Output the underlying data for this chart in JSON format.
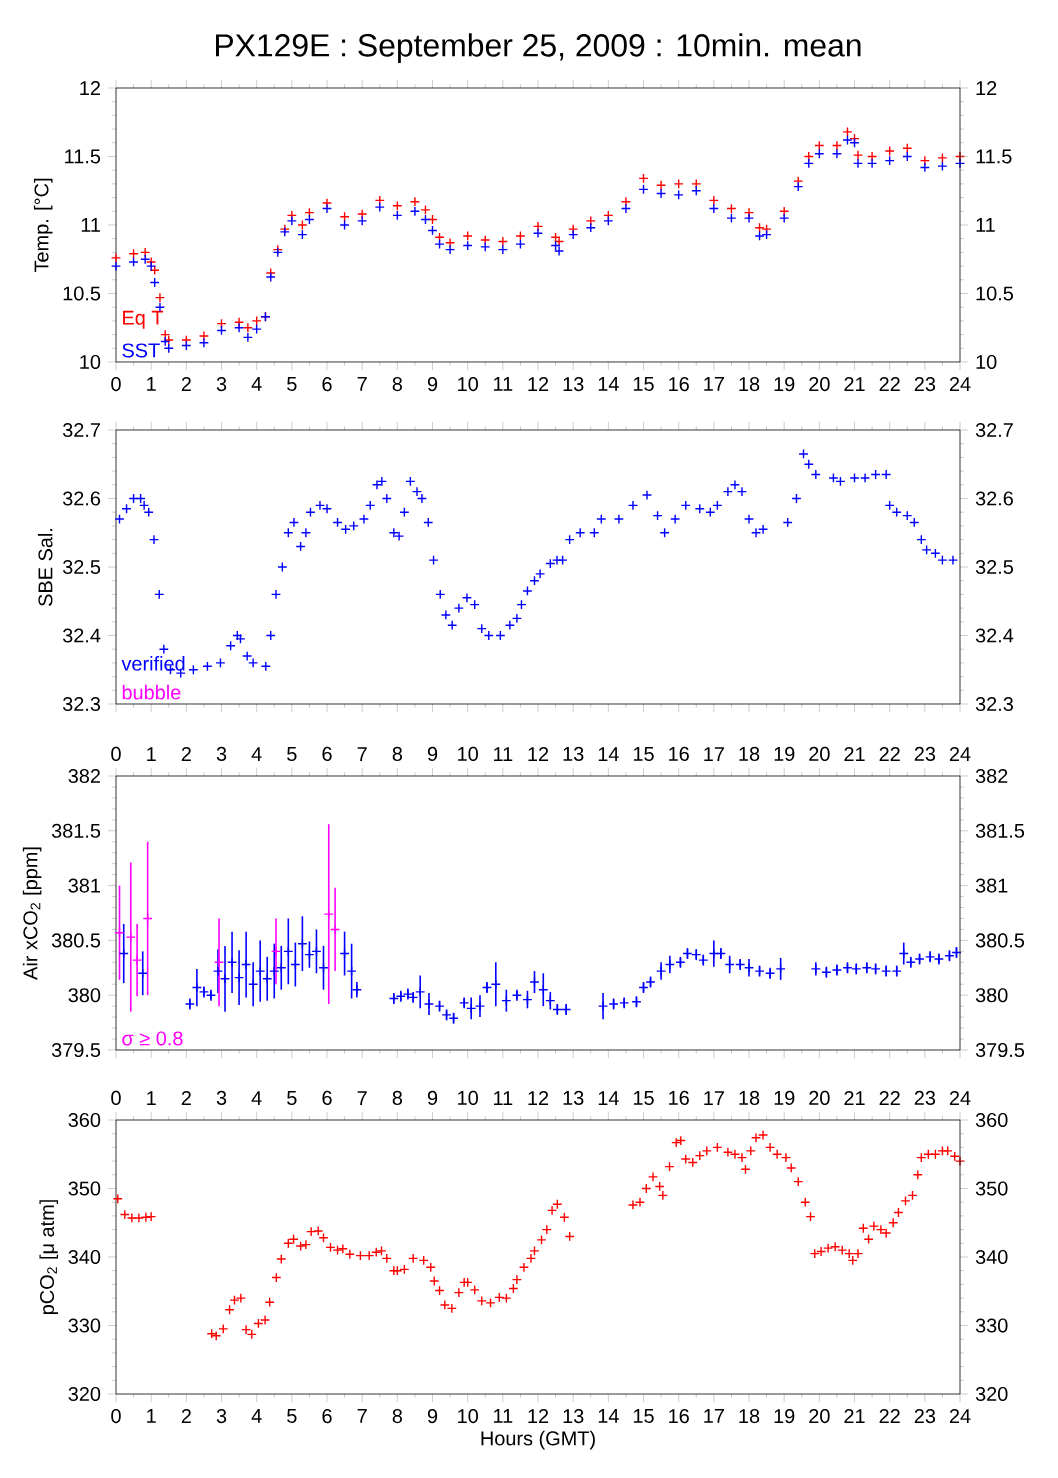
{
  "chart_data": [
    {
      "type": "scatter",
      "title": "PX129E : September 25, 2009 : 10min. mean",
      "ylabel": "Temp. [°C]",
      "marker": "cross",
      "legend": "bottom left",
      "grid": false,
      "xlim": [
        0,
        24
      ],
      "xticks": [
        0,
        1,
        2,
        3,
        4,
        5,
        6,
        7,
        8,
        9,
        10,
        11,
        12,
        13,
        14,
        15,
        16,
        17,
        18,
        19,
        20,
        21,
        22,
        23,
        24
      ],
      "ylim": [
        10,
        12
      ],
      "yticks": [
        10,
        10.5,
        11,
        11.5,
        12
      ],
      "y2lim": [
        10,
        12
      ],
      "y2ticks": [
        10,
        10.5,
        11,
        11.5,
        12
      ],
      "series": [
        {
          "name": "Eq T",
          "color": "#ff0000",
          "x": [
            0,
            0.5,
            0.83,
            1.0,
            1.1,
            1.25,
            1.4,
            1.5,
            2,
            2.5,
            3,
            3.5,
            3.75,
            4,
            4.25,
            4.4,
            4.6,
            4.8,
            5,
            5.3,
            5.5,
            6,
            6.5,
            7,
            7.5,
            8,
            8.5,
            8.8,
            9,
            9.2,
            9.5,
            10,
            10.5,
            11,
            11.5,
            12,
            12.5,
            12.6,
            13,
            13.5,
            14,
            14.5,
            15,
            15.5,
            16,
            16.5,
            17,
            17.5,
            18,
            18.3,
            18.5,
            19,
            19.4,
            19.7,
            20,
            20.5,
            20.8,
            21,
            21.1,
            21.5,
            22,
            22.5,
            23,
            23.5,
            24
          ],
          "values": [
            10.76,
            10.79,
            10.8,
            10.73,
            10.67,
            10.47,
            10.2,
            10.16,
            10.16,
            10.19,
            10.28,
            10.29,
            10.25,
            10.3,
            10.33,
            10.65,
            10.82,
            10.97,
            11.07,
            11.0,
            11.09,
            11.16,
            11.06,
            11.08,
            11.18,
            11.14,
            11.17,
            11.11,
            11.04,
            10.91,
            10.87,
            10.92,
            10.89,
            10.88,
            10.92,
            10.99,
            10.91,
            10.88,
            10.97,
            11.03,
            11.07,
            11.17,
            11.34,
            11.29,
            11.3,
            11.3,
            11.18,
            11.12,
            11.09,
            10.98,
            10.97,
            11.1,
            11.32,
            11.5,
            11.58,
            11.58,
            11.68,
            11.63,
            11.51,
            11.5,
            11.54,
            11.56,
            11.47,
            11.49,
            11.5
          ]
        },
        {
          "name": "SST",
          "color": "#0000ff",
          "x": [
            0,
            0.5,
            0.83,
            1.0,
            1.1,
            1.25,
            1.4,
            1.5,
            2,
            2.5,
            3,
            3.5,
            3.75,
            4,
            4.25,
            4.4,
            4.6,
            4.8,
            5,
            5.3,
            5.5,
            6,
            6.5,
            7,
            7.5,
            8,
            8.5,
            8.8,
            9,
            9.2,
            9.5,
            10,
            10.5,
            11,
            11.5,
            12,
            12.5,
            12.6,
            13,
            13.5,
            14,
            14.5,
            15,
            15.5,
            16,
            16.5,
            17,
            17.5,
            18,
            18.3,
            18.5,
            19,
            19.4,
            19.7,
            20,
            20.5,
            20.8,
            21,
            21.1,
            21.5,
            22,
            22.5,
            23,
            23.5,
            24
          ],
          "values": [
            10.7,
            10.73,
            10.75,
            10.7,
            10.58,
            10.4,
            10.15,
            10.1,
            10.12,
            10.14,
            10.23,
            10.25,
            10.18,
            10.24,
            10.33,
            10.62,
            10.8,
            10.95,
            11.03,
            10.93,
            11.04,
            11.12,
            11.0,
            11.03,
            11.13,
            11.07,
            11.1,
            11.04,
            10.96,
            10.86,
            10.82,
            10.85,
            10.84,
            10.82,
            10.86,
            10.94,
            10.85,
            10.81,
            10.93,
            10.98,
            11.03,
            11.12,
            11.26,
            11.23,
            11.22,
            11.25,
            11.12,
            11.05,
            11.05,
            10.92,
            10.93,
            11.05,
            11.28,
            11.45,
            11.52,
            11.52,
            11.62,
            11.6,
            11.45,
            11.45,
            11.47,
            11.5,
            11.42,
            11.43,
            11.45
          ]
        }
      ]
    },
    {
      "type": "scatter",
      "ylabel": "SBE Sal.",
      "marker": "cross",
      "legend": "bottom left",
      "grid": false,
      "tick_labels": "y",
      "xlim": [
        0,
        24
      ],
      "xticks": [
        0,
        1,
        2,
        3,
        4,
        5,
        6,
        7,
        8,
        9,
        10,
        11,
        12,
        13,
        14,
        15,
        16,
        17,
        18,
        19,
        20,
        21,
        22,
        23,
        24
      ],
      "ylim": [
        32.3,
        32.7
      ],
      "yticks": [
        32.3,
        32.4,
        32.5,
        32.6,
        32.7
      ],
      "y2lim": [
        32.3,
        32.7
      ],
      "y2ticks": [
        32.3,
        32.4,
        32.5,
        32.6,
        32.7
      ],
      "series": [
        {
          "name": "verified",
          "color": "#0000ff",
          "x": [
            0.1,
            0.3,
            0.5,
            0.7,
            0.8,
            0.93,
            1.08,
            1.23,
            1.36,
            1.55,
            1.84,
            2.2,
            2.6,
            2.97,
            3.26,
            3.45,
            3.54,
            3.73,
            3.9,
            4.26,
            4.4,
            4.55,
            4.73,
            4.9,
            5.06,
            5.25,
            5.4,
            5.53,
            5.8,
            6.0,
            6.3,
            6.53,
            6.76,
            7.05,
            7.23,
            7.42,
            7.56,
            7.7,
            7.9,
            8.05,
            8.2,
            8.37,
            8.56,
            8.7,
            8.88,
            9.03,
            9.22,
            9.38,
            9.56,
            9.75,
            9.98,
            10.2,
            10.4,
            10.6,
            10.93,
            11.2,
            11.4,
            11.53,
            11.7,
            11.9,
            12.06,
            12.35,
            12.54,
            12.7,
            12.9,
            13.2,
            13.6,
            13.8,
            14.3,
            14.7,
            15.1,
            15.4,
            15.6,
            15.9,
            16.2,
            16.6,
            16.9,
            17.1,
            17.4,
            17.6,
            17.8,
            18.0,
            18.2,
            18.4,
            19.1,
            19.35,
            19.55,
            19.7,
            19.9,
            20.4,
            20.6,
            21.0,
            21.3,
            21.6,
            21.9,
            22.0,
            22.2,
            22.5,
            22.7,
            22.9,
            23.05,
            23.3,
            23.5,
            23.8
          ],
          "values": [
            32.57,
            32.585,
            32.6,
            32.6,
            32.59,
            32.58,
            32.54,
            32.46,
            32.38,
            32.35,
            32.345,
            32.35,
            32.355,
            32.36,
            32.385,
            32.4,
            32.395,
            32.37,
            32.36,
            32.355,
            32.4,
            32.46,
            32.5,
            32.55,
            32.565,
            32.53,
            32.55,
            32.58,
            32.59,
            32.585,
            32.565,
            32.555,
            32.56,
            32.57,
            32.59,
            32.62,
            32.625,
            32.6,
            32.55,
            32.545,
            32.58,
            32.625,
            32.61,
            32.6,
            32.565,
            32.51,
            32.46,
            32.43,
            32.415,
            32.44,
            32.455,
            32.445,
            32.41,
            32.4,
            32.4,
            32.415,
            32.425,
            32.445,
            32.465,
            32.48,
            32.49,
            32.505,
            32.51,
            32.51,
            32.54,
            32.55,
            32.55,
            32.57,
            32.57,
            32.59,
            32.605,
            32.575,
            32.55,
            32.57,
            32.59,
            32.585,
            32.58,
            32.59,
            32.61,
            32.62,
            32.61,
            32.57,
            32.55,
            32.555,
            32.565,
            32.6,
            32.665,
            32.65,
            32.635,
            32.63,
            32.625,
            32.63,
            32.63,
            32.635,
            32.635,
            32.59,
            32.58,
            32.575,
            32.565,
            32.54,
            32.525,
            32.52,
            32.51,
            32.51
          ]
        },
        {
          "name": "bubble",
          "color": "#ff00ff"
        }
      ]
    },
    {
      "type": "scatter",
      "ylabel": "Air xCO$_{2}$ [ppm]",
      "marker": "cross",
      "legend": "bottom left",
      "grid": false,
      "tick_labels": "y",
      "xlim": [
        0,
        24
      ],
      "xticks": [
        0,
        1,
        2,
        3,
        4,
        5,
        6,
        7,
        8,
        9,
        10,
        11,
        12,
        13,
        14,
        15,
        16,
        17,
        18,
        19,
        20,
        21,
        22,
        23,
        24
      ],
      "x2lim": [
        0,
        24
      ],
      "x2ticks": [
        0,
        1,
        2,
        3,
        4,
        5,
        6,
        7,
        8,
        9,
        10,
        11,
        12,
        13,
        14,
        15,
        16,
        17,
        18,
        19,
        20,
        21,
        22,
        23,
        24
      ],
      "ylim": [
        379.5,
        382
      ],
      "yticks": [
        379.5,
        380,
        380.5,
        381,
        381.5,
        382
      ],
      "y2lim": [
        379.5,
        382
      ],
      "y2ticks": [
        379.5,
        380,
        380.5,
        381,
        381.5,
        382
      ],
      "series": [
        {
          "color": "#0000ff",
          "x": [
            0.22,
            0.76,
            2.1,
            2.3,
            2.5,
            2.7,
            2.9,
            3.1,
            3.3,
            3.5,
            3.7,
            3.9,
            4.1,
            4.3,
            4.5,
            4.7,
            4.9,
            5.1,
            5.3,
            5.5,
            5.7,
            5.9,
            6.5,
            6.7,
            6.85,
            7.9,
            8.1,
            8.3,
            8.45,
            8.65,
            8.9,
            9.2,
            9.4,
            9.6,
            9.9,
            10.1,
            10.35,
            10.55,
            10.8,
            11.1,
            11.4,
            11.7,
            11.9,
            12.15,
            12.35,
            12.55,
            12.8,
            13.85,
            14.15,
            14.45,
            14.8,
            15.0,
            15.2,
            15.5,
            15.75,
            16.05,
            16.25,
            16.5,
            16.7,
            17.0,
            17.2,
            17.45,
            17.75,
            18.0,
            18.3,
            18.6,
            18.9,
            19.9,
            20.2,
            20.5,
            20.8,
            21.05,
            21.35,
            21.6,
            21.9,
            22.2,
            22.4,
            22.6,
            22.85,
            23.15,
            23.4,
            23.7,
            23.9
          ],
          "values": [
            380.38,
            380.2,
            379.92,
            380.07,
            380.03,
            380.0,
            380.22,
            380.15,
            380.3,
            380.16,
            380.28,
            380.1,
            380.22,
            380.15,
            380.22,
            380.25,
            380.4,
            380.28,
            380.47,
            380.37,
            380.4,
            380.25,
            380.38,
            380.22,
            380.05,
            379.97,
            379.99,
            380.01,
            379.98,
            380.03,
            379.92,
            379.9,
            379.82,
            379.79,
            379.93,
            379.88,
            379.9,
            380.07,
            380.1,
            379.95,
            380.0,
            379.96,
            380.12,
            380.05,
            379.95,
            379.87,
            379.87,
            379.9,
            379.92,
            379.93,
            379.94,
            380.07,
            380.12,
            380.22,
            380.28,
            380.3,
            380.38,
            380.37,
            380.32,
            380.38,
            380.38,
            380.28,
            380.28,
            380.25,
            380.22,
            380.2,
            380.24,
            380.24,
            380.21,
            380.23,
            380.25,
            380.24,
            380.25,
            380.24,
            380.22,
            380.22,
            380.38,
            380.3,
            380.33,
            380.35,
            380.33,
            380.36,
            380.39
          ],
          "errors": [
            0.27,
            0.2,
            0.05,
            0.17,
            0.05,
            0.05,
            0.2,
            0.3,
            0.28,
            0.25,
            0.3,
            0.2,
            0.28,
            0.2,
            0.25,
            0.2,
            0.3,
            0.2,
            0.25,
            0.12,
            0.2,
            0.2,
            0.2,
            0.25,
            0.07,
            0.05,
            0.05,
            0.05,
            0.05,
            0.15,
            0.1,
            0.05,
            0.05,
            0.05,
            0.05,
            0.1,
            0.1,
            0.05,
            0.2,
            0.1,
            0.05,
            0.08,
            0.1,
            0.15,
            0.08,
            0.05,
            0.05,
            0.12,
            0.05,
            0.05,
            0.05,
            0.05,
            0.05,
            0.08,
            0.08,
            0.05,
            0.05,
            0.05,
            0.05,
            0.12,
            0.05,
            0.08,
            0.05,
            0.08,
            0.05,
            0.05,
            0.1,
            0.06,
            0.05,
            0.05,
            0.05,
            0.05,
            0.05,
            0.05,
            0.05,
            0.05,
            0.1,
            0.05,
            0.05,
            0.05,
            0.05,
            0.05,
            0.05
          ]
        },
        {
          "name": "σ ≥ 0.8",
          "color": "#ff00ff",
          "x": [
            0.1,
            0.42,
            0.6,
            0.9,
            2.93,
            4.55,
            6.05,
            6.23
          ],
          "values": [
            380.57,
            380.53,
            380.32,
            380.7,
            380.3,
            380.4,
            380.74,
            380.6
          ],
          "errors": [
            0.43,
            0.68,
            0.33,
            0.7,
            0.4,
            0.3,
            0.82,
            0.38
          ]
        }
      ]
    },
    {
      "type": "scatter",
      "ylabel": "pCO$_{2}$ [μ atm]",
      "xlabel": "Hours (GMT)",
      "marker": "cross",
      "grid": false,
      "xlim": [
        0,
        24
      ],
      "xticks": [
        0,
        1,
        2,
        3,
        4,
        5,
        6,
        7,
        8,
        9,
        10,
        11,
        12,
        13,
        14,
        15,
        16,
        17,
        18,
        19,
        20,
        21,
        22,
        23,
        24
      ],
      "x2lim": [
        0,
        24
      ],
      "x2ticks": [
        0,
        1,
        2,
        3,
        4,
        5,
        6,
        7,
        8,
        9,
        10,
        11,
        12,
        13,
        14,
        15,
        16,
        17,
        18,
        19,
        20,
        21,
        22,
        23,
        24
      ],
      "ylim": [
        320,
        360
      ],
      "yticks": [
        320,
        330,
        340,
        350,
        360
      ],
      "y2lim": [
        320,
        360
      ],
      "y2ticks": [
        320,
        330,
        340,
        350,
        360
      ],
      "series": [
        {
          "color": "#ff0000",
          "x": [
            0.05,
            0.25,
            0.45,
            0.65,
            0.85,
            1.0,
            2.72,
            2.85,
            3.05,
            3.23,
            3.37,
            3.55,
            3.7,
            3.86,
            4.05,
            4.24,
            4.37,
            4.56,
            4.7,
            4.9,
            5.05,
            5.25,
            5.4,
            5.55,
            5.75,
            5.9,
            6.1,
            6.3,
            6.45,
            6.65,
            6.95,
            7.2,
            7.4,
            7.55,
            7.7,
            7.9,
            8.0,
            8.2,
            8.45,
            8.75,
            8.95,
            9.05,
            9.2,
            9.35,
            9.55,
            9.75,
            9.9,
            10.0,
            10.2,
            10.4,
            10.65,
            10.9,
            11.1,
            11.3,
            11.4,
            11.6,
            11.8,
            11.9,
            12.1,
            12.25,
            12.4,
            12.55,
            12.75,
            12.9,
            14.7,
            14.9,
            15.08,
            15.27,
            15.46,
            15.55,
            15.74,
            15.93,
            16.06,
            16.2,
            16.4,
            16.6,
            16.8,
            17.1,
            17.4,
            17.6,
            17.8,
            17.9,
            18.05,
            18.2,
            18.4,
            18.6,
            18.8,
            19.05,
            19.2,
            19.4,
            19.6,
            19.75,
            19.87,
            20.05,
            20.25,
            20.45,
            20.65,
            20.85,
            20.95,
            21.1,
            21.25,
            21.4,
            21.55,
            21.75,
            21.9,
            22.1,
            22.25,
            22.45,
            22.65,
            22.8,
            22.9,
            23.1,
            23.3,
            23.5,
            23.65,
            23.85,
            24.0
          ],
          "values": [
            348.5,
            346.2,
            345.7,
            345.7,
            345.8,
            345.9,
            328.8,
            328.5,
            329.5,
            332.3,
            333.7,
            334.0,
            329.4,
            328.7,
            330.3,
            330.8,
            333.4,
            337.0,
            339.7,
            342.0,
            342.6,
            341.6,
            341.8,
            343.7,
            343.8,
            342.8,
            341.4,
            341.0,
            341.2,
            340.4,
            340.2,
            340.2,
            340.7,
            340.9,
            339.8,
            338.0,
            338.0,
            338.2,
            339.8,
            339.5,
            338.5,
            336.5,
            335.1,
            333.0,
            332.5,
            334.8,
            336.3,
            336.3,
            335.2,
            333.6,
            333.3,
            334.1,
            334.0,
            335.4,
            336.7,
            338.5,
            339.8,
            340.9,
            342.5,
            344.0,
            346.8,
            347.7,
            345.8,
            343.0,
            347.6,
            348.0,
            350.0,
            351.7,
            350.3,
            349.0,
            353.2,
            356.7,
            357.0,
            354.3,
            353.8,
            354.8,
            355.5,
            356.0,
            355.3,
            355.0,
            354.5,
            352.8,
            355.5,
            357.4,
            357.8,
            356.0,
            355.0,
            354.5,
            353.0,
            351.0,
            348.0,
            345.9,
            340.5,
            340.8,
            341.3,
            341.5,
            341.0,
            340.5,
            339.5,
            340.5,
            344.2,
            342.6,
            344.5,
            344.0,
            343.5,
            345.0,
            346.5,
            348.2,
            349.0,
            352.0,
            354.5,
            355.0,
            355.0,
            355.5,
            355.5,
            354.7,
            354.0
          ]
        }
      ]
    }
  ]
}
